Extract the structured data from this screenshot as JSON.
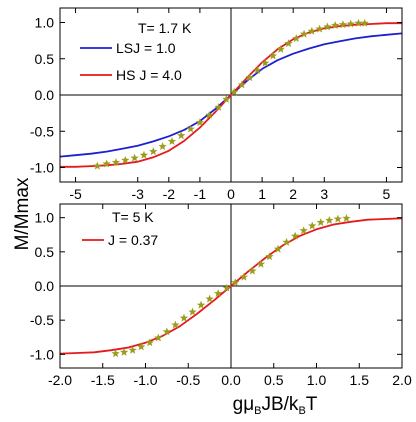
{
  "figure": {
    "ylabel": "M/Mmax",
    "xlabel_parts": [
      {
        "t": "g",
        "sub": false
      },
      {
        "t": "μ",
        "sub": false
      },
      {
        "t": "B",
        "sub": true
      },
      {
        "t": "JB/k",
        "sub": false
      },
      {
        "t": "B",
        "sub": true
      },
      {
        "t": "T",
        "sub": false
      }
    ]
  },
  "chart_data": [
    {
      "type": "line",
      "panel": "top",
      "annotation": "T= 1.7 K",
      "xlim": [
        -5.5,
        5.5
      ],
      "ylim": [
        -1.2,
        1.2
      ],
      "x_ticks": [
        -5,
        -3,
        -2,
        -1,
        0,
        1,
        2,
        3,
        5
      ],
      "x_tick_labels": [
        "-5",
        "-3",
        "-2",
        "-1",
        "0",
        "1",
        "2",
        "3",
        "5"
      ],
      "y_ticks": [
        -1.0,
        -0.5,
        0.0,
        0.5,
        1.0
      ],
      "y_tick_labels": [
        "-1.0",
        "-0.5",
        "0.0",
        "0.5",
        "1.0"
      ],
      "legend_placement": "top-left",
      "series": [
        {
          "name": "LSJ = 1.0",
          "color": "#1f1fd2",
          "x": [
            -5.5,
            -5,
            -4.5,
            -4,
            -3.5,
            -3,
            -2.5,
            -2,
            -1.5,
            -1,
            -0.5,
            0,
            0.5,
            1,
            1.5,
            2,
            2.5,
            3,
            3.5,
            4,
            4.5,
            5,
            5.5
          ],
          "y": [
            -0.85,
            -0.83,
            -0.81,
            -0.78,
            -0.74,
            -0.7,
            -0.64,
            -0.57,
            -0.48,
            -0.36,
            -0.19,
            0.0,
            0.19,
            0.36,
            0.48,
            0.57,
            0.64,
            0.7,
            0.74,
            0.78,
            0.81,
            0.83,
            0.85
          ]
        },
        {
          "name": "HS  J = 4.0",
          "color": "#e41a1c",
          "x": [
            -5.5,
            -5,
            -4.5,
            -4,
            -3.5,
            -3,
            -2.5,
            -2,
            -1.5,
            -1,
            -0.5,
            0,
            0.5,
            1,
            1.5,
            2,
            2.5,
            3,
            3.5,
            4,
            4.5,
            5,
            5.5
          ],
          "y": [
            -0.99,
            -0.99,
            -0.98,
            -0.97,
            -0.95,
            -0.92,
            -0.86,
            -0.77,
            -0.63,
            -0.45,
            -0.23,
            0.0,
            0.23,
            0.45,
            0.63,
            0.77,
            0.86,
            0.92,
            0.95,
            0.97,
            0.98,
            0.99,
            0.99
          ]
        },
        {
          "name": "",
          "style": "stars",
          "color": "#9b9b1c",
          "x": [
            -4.3,
            -4.0,
            -3.7,
            -3.4,
            -3.1,
            -2.8,
            -2.5,
            -2.2,
            -1.9,
            -1.6,
            -1.3,
            -1.0,
            -0.7,
            -0.4,
            -0.15,
            0.1,
            0.35,
            0.6,
            0.85,
            1.1,
            1.35,
            1.6,
            1.85,
            2.1,
            2.35,
            2.6,
            2.85,
            3.1,
            3.35,
            3.6,
            3.85,
            4.1,
            4.3
          ],
          "y": [
            -0.98,
            -0.95,
            -0.93,
            -0.9,
            -0.87,
            -0.83,
            -0.78,
            -0.71,
            -0.64,
            -0.56,
            -0.47,
            -0.38,
            -0.28,
            -0.17,
            -0.06,
            0.04,
            0.14,
            0.24,
            0.34,
            0.44,
            0.54,
            0.63,
            0.71,
            0.78,
            0.84,
            0.88,
            0.91,
            0.94,
            0.96,
            0.97,
            0.98,
            0.99,
            0.99
          ]
        }
      ]
    },
    {
      "type": "line",
      "panel": "bottom",
      "annotation": "T= 5 K",
      "xlim": [
        -2.0,
        2.0
      ],
      "ylim": [
        -1.2,
        1.2
      ],
      "x_ticks": [
        -2.0,
        -1.5,
        -1.0,
        -0.5,
        0.0,
        0.5,
        1.0,
        1.5,
        2.0
      ],
      "x_tick_labels": [
        "-2.0",
        "-1.5",
        "-1.0",
        "-0.5",
        "0.0",
        "0.5",
        "1.0",
        "1.5",
        "2.0"
      ],
      "y_ticks": [
        -1.0,
        -0.5,
        0.0,
        0.5,
        1.0
      ],
      "y_tick_labels": [
        "-1.0",
        "-0.5",
        "0.0",
        "0.5",
        "1.0"
      ],
      "legend_placement": "top-left",
      "series": [
        {
          "name": "J = 0.37",
          "color": "#e41a1c",
          "x": [
            -2.0,
            -1.8,
            -1.6,
            -1.4,
            -1.2,
            -1.0,
            -0.8,
            -0.6,
            -0.4,
            -0.2,
            0.0,
            0.2,
            0.4,
            0.6,
            0.8,
            1.0,
            1.2,
            1.4,
            1.6,
            1.8,
            2.0
          ],
          "y": [
            -0.99,
            -0.98,
            -0.97,
            -0.94,
            -0.9,
            -0.83,
            -0.73,
            -0.59,
            -0.41,
            -0.21,
            0.0,
            0.21,
            0.41,
            0.59,
            0.73,
            0.83,
            0.9,
            0.94,
            0.97,
            0.98,
            0.99
          ]
        },
        {
          "name": "",
          "style": "stars",
          "color": "#9b9b1c",
          "x": [
            -1.35,
            -1.25,
            -1.15,
            -1.05,
            -0.95,
            -0.85,
            -0.75,
            -0.65,
            -0.55,
            -0.45,
            -0.35,
            -0.25,
            -0.15,
            -0.05,
            0.05,
            0.15,
            0.25,
            0.35,
            0.45,
            0.55,
            0.65,
            0.75,
            0.85,
            0.95,
            1.05,
            1.15,
            1.25,
            1.35
          ],
          "y": [
            -0.99,
            -0.97,
            -0.94,
            -0.89,
            -0.83,
            -0.76,
            -0.67,
            -0.57,
            -0.47,
            -0.38,
            -0.28,
            -0.19,
            -0.11,
            -0.03,
            0.05,
            0.13,
            0.22,
            0.32,
            0.43,
            0.54,
            0.64,
            0.73,
            0.81,
            0.88,
            0.93,
            0.96,
            0.98,
            0.99
          ]
        }
      ]
    }
  ]
}
